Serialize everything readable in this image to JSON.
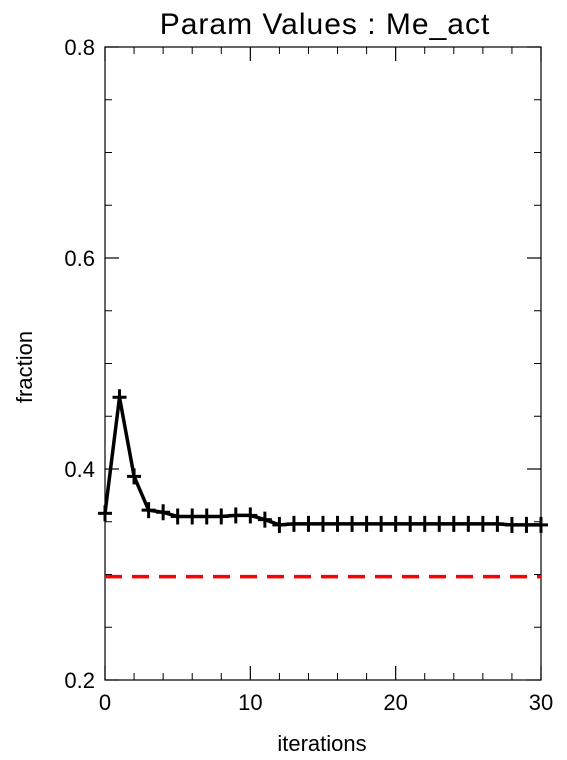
{
  "chart_data": {
    "type": "line",
    "title": "Param Values : Me_act",
    "xlabel": "iterations",
    "ylabel": "fraction",
    "xlim": [
      0,
      30
    ],
    "ylim": [
      0.2,
      0.8
    ],
    "xticks": [
      0,
      10,
      20,
      30
    ],
    "xtick_labels": [
      "0",
      "10",
      "20",
      "30"
    ],
    "yticks": [
      0.2,
      0.4,
      0.6,
      0.8
    ],
    "ytick_labels": [
      "0.2",
      "0.4",
      "0.6",
      "0.8"
    ],
    "x_minor_step": 2,
    "y_minor_step": 0.05,
    "grid": false,
    "series": [
      {
        "color": "#000000",
        "marker": "plus",
        "x": [
          0,
          1,
          2,
          3,
          4,
          5,
          6,
          7,
          8,
          9,
          10,
          11,
          12,
          13,
          14,
          15,
          16,
          17,
          18,
          19,
          20,
          21,
          22,
          23,
          24,
          25,
          26,
          27,
          28,
          29,
          30
        ],
        "y": [
          0.358,
          0.468,
          0.393,
          0.361,
          0.359,
          0.355,
          0.355,
          0.355,
          0.355,
          0.356,
          0.356,
          0.352,
          0.347,
          0.348,
          0.348,
          0.348,
          0.348,
          0.348,
          0.348,
          0.348,
          0.348,
          0.348,
          0.348,
          0.348,
          0.348,
          0.348,
          0.348,
          0.348,
          0.347,
          0.347,
          0.347
        ]
      }
    ],
    "reference_lines": [
      {
        "y": 0.298,
        "color": "#ff0000",
        "style": "dashed"
      }
    ]
  }
}
